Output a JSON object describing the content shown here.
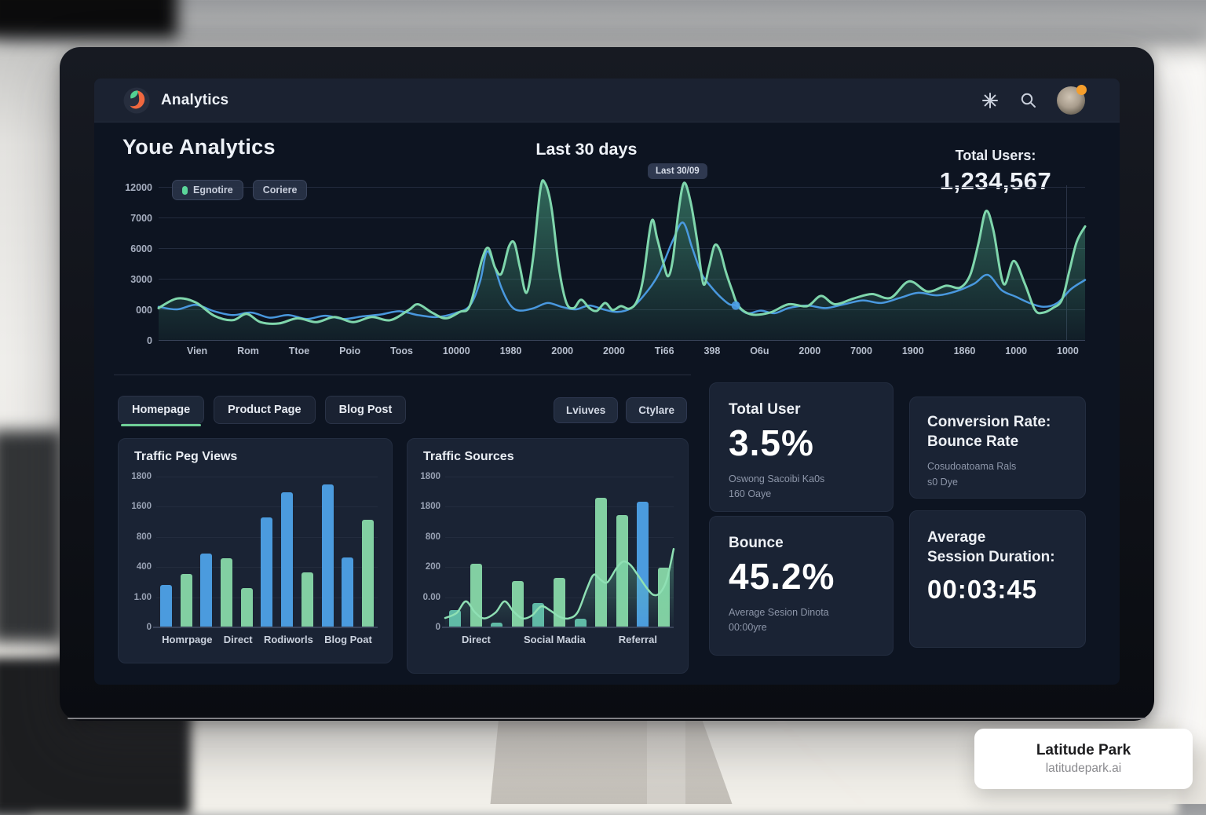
{
  "nav": {
    "brand": "Analytics"
  },
  "header": {
    "title": "Youe Analytics",
    "range": "Last 30 days",
    "total_label": "Total Users:",
    "total_value": "1,234,567"
  },
  "tabs": {
    "items": [
      "Homepage",
      "Product Page",
      "Blog Post"
    ],
    "active": 0
  },
  "actions": {
    "buttons": [
      "Lviuves",
      "Ctylare"
    ]
  },
  "stats": {
    "users": {
      "title": "Total User",
      "value": "3.5%",
      "line1": "Oswong Sacoibi Ka0s",
      "line2": "160 Oaye"
    },
    "conversion": {
      "title_line1": "Conversion Rate:",
      "title_line2": "Bounce Rate",
      "line1": "Cosudoatoama Rals",
      "line2": "s0 Dye"
    },
    "bounce": {
      "title": "Bounce",
      "value": "45.2%",
      "line1": "Average Sesion Dinota",
      "line2": "00:00yre"
    },
    "duration": {
      "title_line1": "Average",
      "title_line2": "Session Duration:",
      "value": "00:03:45"
    }
  },
  "watermark": {
    "title": "Latitude Park",
    "subtitle": "latitudepark.ai"
  },
  "colors": {
    "bars": {
      "blue": "#4B9BDE",
      "green": "#82CFA2",
      "teal": "#5FB9A6"
    },
    "line_green": "#7FD6AC",
    "line_blue": "#4C9EE8",
    "accent_green": "#6FCF97",
    "orange": "#F0683F"
  },
  "chart_data": [
    {
      "id": "traffic_overview",
      "type": "area",
      "tooltip": "Last 30/09",
      "ylim": [
        0,
        12000
      ],
      "y_ticks": [
        "12000",
        "7000",
        "6000",
        "3000",
        "000",
        "0"
      ],
      "x_ticks": [
        "Vien",
        "Rom",
        "Ttoe",
        "Poio",
        "Toos",
        "10000",
        "1980",
        "2000",
        "2000",
        "Ti66",
        "398",
        "O6u",
        "2000",
        "7000",
        "1900",
        "1860",
        "1000",
        "1000"
      ],
      "series": [
        {
          "name": "Egnotire",
          "color": "#7FD6AC",
          "fill": true,
          "points": [
            [
              0,
              2500
            ],
            [
              2,
              3250
            ],
            [
              4,
              2950
            ],
            [
              6,
              1900
            ],
            [
              8,
              1550
            ],
            [
              9.5,
              2050
            ],
            [
              11,
              1400
            ],
            [
              13,
              1300
            ],
            [
              15,
              1700
            ],
            [
              17,
              1400
            ],
            [
              19,
              1800
            ],
            [
              21,
              1400
            ],
            [
              23,
              1800
            ],
            [
              25,
              1550
            ],
            [
              27,
              2350
            ],
            [
              28,
              2800
            ],
            [
              29.5,
              2150
            ],
            [
              31,
              1700
            ],
            [
              32.5,
              2200
            ],
            [
              33.6,
              2700
            ],
            [
              34.9,
              6300
            ],
            [
              35.6,
              7200
            ],
            [
              36.3,
              5700
            ],
            [
              37,
              5200
            ],
            [
              37.8,
              7300
            ],
            [
              38.4,
              7600
            ],
            [
              39,
              5700
            ],
            [
              39.7,
              3700
            ],
            [
              40.4,
              6300
            ],
            [
              41.2,
              11800
            ],
            [
              41.7,
              12300
            ],
            [
              42.4,
              10400
            ],
            [
              43.2,
              5700
            ],
            [
              44,
              2950
            ],
            [
              44.8,
              2500
            ],
            [
              45.6,
              3150
            ],
            [
              46.5,
              2500
            ],
            [
              47.3,
              2280
            ],
            [
              48.2,
              2900
            ],
            [
              49,
              2350
            ],
            [
              49.9,
              2650
            ],
            [
              50.8,
              2450
            ],
            [
              51.6,
              3000
            ],
            [
              52.3,
              4800
            ],
            [
              53.2,
              9300
            ],
            [
              53.8,
              8000
            ],
            [
              54.5,
              6000
            ],
            [
              55,
              5000
            ],
            [
              55.5,
              6300
            ],
            [
              56.1,
              10000
            ],
            [
              56.7,
              12300
            ],
            [
              57.4,
              10900
            ],
            [
              58.1,
              7900
            ],
            [
              58.8,
              4400
            ],
            [
              59.4,
              5700
            ],
            [
              60,
              7400
            ],
            [
              60.6,
              7000
            ],
            [
              61.2,
              5400
            ],
            [
              61.9,
              3900
            ],
            [
              62.6,
              2650
            ],
            [
              64,
              2000
            ],
            [
              66,
              2150
            ],
            [
              68,
              2800
            ],
            [
              70,
              2650
            ],
            [
              71.5,
              3450
            ],
            [
              73,
              2800
            ],
            [
              75,
              3250
            ],
            [
              77,
              3600
            ],
            [
              79,
              3300
            ],
            [
              81,
              4600
            ],
            [
              83,
              3800
            ],
            [
              85,
              4250
            ],
            [
              86.5,
              4100
            ],
            [
              87.6,
              5100
            ],
            [
              88.5,
              7600
            ],
            [
              89.3,
              10100
            ],
            [
              90.1,
              8600
            ],
            [
              91.2,
              4400
            ],
            [
              92.3,
              6200
            ],
            [
              93.5,
              4400
            ],
            [
              94.6,
              2350
            ],
            [
              95.5,
              2150
            ],
            [
              96.5,
              2500
            ],
            [
              97.5,
              3150
            ],
            [
              98.3,
              5400
            ],
            [
              99.1,
              7700
            ],
            [
              100,
              8900
            ]
          ]
        },
        {
          "name": "Coriere",
          "color": "#4C9EE8",
          "fill": false,
          "marker": [
            62.3,
            2700
          ],
          "points": [
            [
              0,
              2600
            ],
            [
              2,
              2400
            ],
            [
              4,
              2750
            ],
            [
              6,
              2250
            ],
            [
              8,
              1950
            ],
            [
              10,
              2150
            ],
            [
              12,
              1750
            ],
            [
              14,
              1950
            ],
            [
              16,
              1650
            ],
            [
              18,
              1900
            ],
            [
              20,
              1650
            ],
            [
              22,
              1850
            ],
            [
              24,
              2000
            ],
            [
              26,
              2250
            ],
            [
              28,
              1950
            ],
            [
              30,
              1800
            ],
            [
              32,
              2100
            ],
            [
              33.6,
              2700
            ],
            [
              34.7,
              4600
            ],
            [
              35.4,
              6900
            ],
            [
              36.1,
              6100
            ],
            [
              37,
              4100
            ],
            [
              38,
              2700
            ],
            [
              39,
              2300
            ],
            [
              40.5,
              2500
            ],
            [
              42,
              2900
            ],
            [
              43.5,
              2600
            ],
            [
              45,
              2400
            ],
            [
              46.5,
              2700
            ],
            [
              48,
              2400
            ],
            [
              49.5,
              2200
            ],
            [
              51,
              2500
            ],
            [
              52.5,
              3600
            ],
            [
              54,
              5200
            ],
            [
              55.5,
              7800
            ],
            [
              56.6,
              9200
            ],
            [
              57.6,
              7200
            ],
            [
              58.6,
              5200
            ],
            [
              59.6,
              4200
            ],
            [
              60.6,
              3400
            ],
            [
              61.6,
              2800
            ],
            [
              62.3,
              2700
            ],
            [
              63.5,
              2100
            ],
            [
              65,
              2300
            ],
            [
              66.5,
              2100
            ],
            [
              68,
              2500
            ],
            [
              70,
              2700
            ],
            [
              72,
              2500
            ],
            [
              74,
              2800
            ],
            [
              76,
              3100
            ],
            [
              78,
              2900
            ],
            [
              80,
              3300
            ],
            [
              82,
              3700
            ],
            [
              84,
              3500
            ],
            [
              86,
              3800
            ],
            [
              88,
              4400
            ],
            [
              89.5,
              5100
            ],
            [
              91,
              3900
            ],
            [
              92.5,
              3400
            ],
            [
              94,
              2900
            ],
            [
              95.5,
              2600
            ],
            [
              97,
              2900
            ],
            [
              98.5,
              4000
            ],
            [
              100,
              4700
            ]
          ]
        }
      ]
    },
    {
      "id": "page_views",
      "type": "bar",
      "title": "Traffic Peg Views",
      "ylim": [
        0,
        1800
      ],
      "y_ticks": [
        "1800",
        "1600",
        "800",
        "400",
        "1.00",
        "0"
      ],
      "x_labels": [
        "Homrpage",
        "Direct",
        "Rodiworls",
        "Blog Poat"
      ],
      "bars": [
        {
          "v": 510,
          "c": "blue"
        },
        {
          "v": 635,
          "c": "green"
        },
        {
          "v": 880,
          "c": "blue"
        },
        {
          "v": 825,
          "c": "green"
        },
        {
          "v": 470,
          "c": "green"
        },
        {
          "v": 1315,
          "c": "blue"
        },
        {
          "v": 1610,
          "c": "blue"
        },
        {
          "v": 660,
          "c": "green"
        },
        {
          "v": 1710,
          "c": "blue"
        },
        {
          "v": 835,
          "c": "blue"
        },
        {
          "v": 1280,
          "c": "green"
        }
      ]
    },
    {
      "id": "traffic_sources",
      "type": "bar+area",
      "title": "Traffic Sources",
      "ylim": [
        0,
        1800
      ],
      "y_ticks": [
        "1800",
        "1800",
        "800",
        "200",
        "0.00",
        "0"
      ],
      "x_labels": [
        "Direct",
        "Social Madia",
        "Referral"
      ],
      "bars": [
        {
          "v": 210,
          "c": "teal"
        },
        {
          "v": 760,
          "c": "green"
        },
        {
          "v": 60,
          "c": "teal"
        },
        {
          "v": 550,
          "c": "green"
        },
        {
          "v": 290,
          "c": "teal"
        },
        {
          "v": 590,
          "c": "green"
        },
        {
          "v": 100,
          "c": "teal"
        },
        {
          "v": 1550,
          "c": "green"
        },
        {
          "v": 1340,
          "c": "green"
        },
        {
          "v": 1500,
          "c": "blue"
        },
        {
          "v": 710,
          "c": "green"
        }
      ],
      "line": {
        "color": "#8FE0B4",
        "points": [
          [
            0,
            100
          ],
          [
            5,
            160
          ],
          [
            9,
            300
          ],
          [
            13,
            170
          ],
          [
            17,
            95
          ],
          [
            22,
            165
          ],
          [
            26,
            300
          ],
          [
            30,
            175
          ],
          [
            34,
            95
          ],
          [
            38,
            130
          ],
          [
            42,
            240
          ],
          [
            46,
            190
          ],
          [
            50,
            115
          ],
          [
            54,
            95
          ],
          [
            58,
            170
          ],
          [
            62,
            450
          ],
          [
            65,
            620
          ],
          [
            68,
            560
          ],
          [
            71,
            530
          ],
          [
            75,
            700
          ],
          [
            78,
            780
          ],
          [
            81,
            740
          ],
          [
            84,
            630
          ],
          [
            88,
            470
          ],
          [
            91,
            380
          ],
          [
            94,
            400
          ],
          [
            97,
            560
          ],
          [
            100,
            930
          ]
        ]
      }
    }
  ]
}
